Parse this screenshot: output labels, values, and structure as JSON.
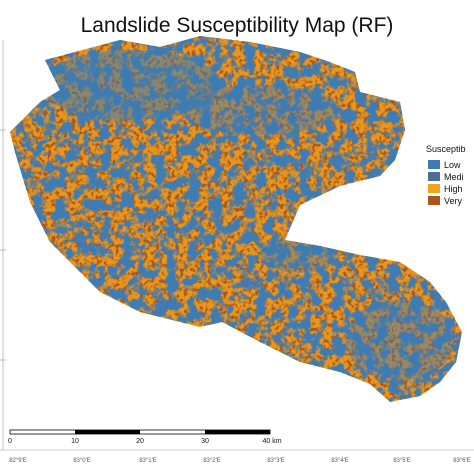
{
  "title": "Landslide Susceptibility Map (RF)",
  "legend": {
    "title": "Susceptib",
    "items": [
      "Low",
      "Medi",
      "High",
      "Very"
    ]
  },
  "scale_bar": [
    "0",
    "10",
    "20",
    "30",
    "40 km"
  ],
  "longitude_labels": [
    "82°9'E",
    "83°0'E",
    "83°1'E",
    "83°2'E",
    "83°3'E",
    "83°4'E",
    "83°5'E",
    "83°6'E"
  ]
}
